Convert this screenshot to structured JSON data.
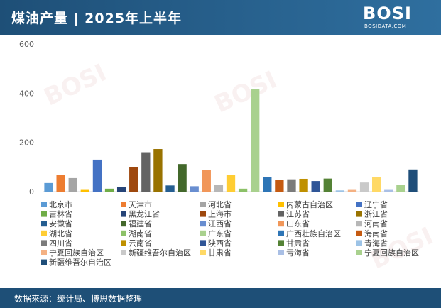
{
  "header": {
    "title": "煤油产量 | 2025年上半年",
    "logo_text": "BOSI",
    "logo_sub": "BOSIDATA.COM"
  },
  "footer": {
    "source": "数据来源：统计局、博思数据整理"
  },
  "chart_data": {
    "type": "bar",
    "title": "",
    "xlabel": "",
    "ylabel": "",
    "ylim": [
      0,
      600
    ],
    "yticks": [
      0,
      200,
      400,
      600
    ],
    "grid": false,
    "legend_position": "bottom",
    "categories": [
      "北京市",
      "天津市",
      "河北省",
      "内蒙古自治区",
      "辽宁省",
      "吉林省",
      "黑龙江省",
      "上海市",
      "江苏省",
      "浙江省",
      "安徽省",
      "福建省",
      "江西省",
      "山东省",
      "河南省",
      "湖北省",
      "湖南省",
      "广东省",
      "广西壮族自治区",
      "海南省",
      "四川省",
      "云南省",
      "陕西省",
      "甘肃省",
      "青海省",
      "宁夏回族自治区",
      "新疆维吾尔自治区",
      "甘肃省",
      "青海省",
      "宁夏回族自治区",
      "新疆维吾尔自治区"
    ],
    "values": [
      35,
      67,
      55,
      7,
      130,
      12,
      20,
      100,
      160,
      173,
      25,
      112,
      22,
      87,
      27,
      67,
      12,
      416,
      58,
      47,
      50,
      52,
      43,
      53,
      5,
      7,
      37,
      58,
      7,
      27,
      90
    ],
    "colors": [
      "#5b9bd5",
      "#ed7d31",
      "#a5a5a5",
      "#ffc000",
      "#4472c4",
      "#70ad47",
      "#264478",
      "#9e480e",
      "#636363",
      "#997300",
      "#255e91",
      "#43682b",
      "#698ed0",
      "#f1975a",
      "#b7b7b7",
      "#ffcd33",
      "#8cc168",
      "#a9d18e",
      "#2e75b6",
      "#c55a11",
      "#7b7b7b",
      "#bf9000",
      "#2f5597",
      "#548235",
      "#9dc3e6",
      "#f4b183",
      "#c9c9c9",
      "#ffd966",
      "#a9bfe5",
      "#a9d18e",
      "#1f4e79"
    ]
  }
}
